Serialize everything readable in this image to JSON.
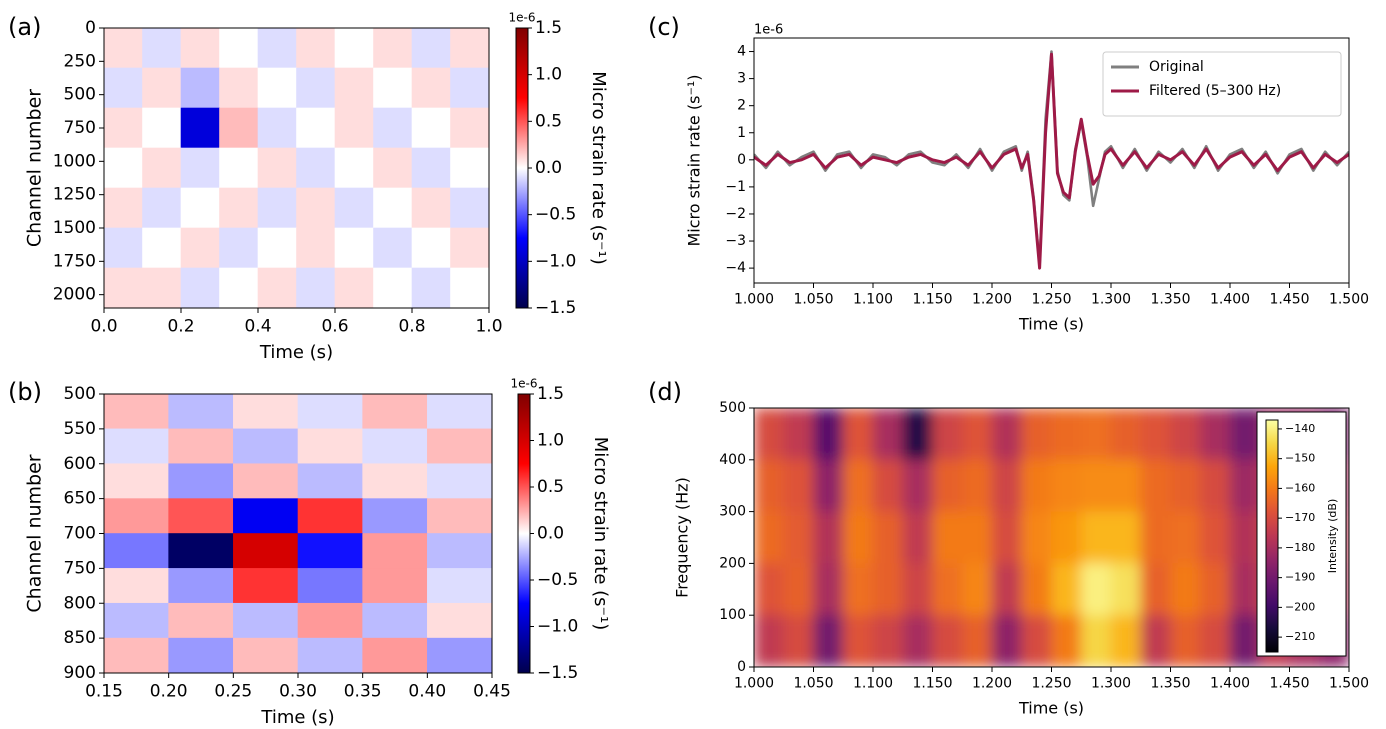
{
  "chart_data": [
    {
      "type": "heatmap",
      "panel_label": "(a)",
      "x_label": "Time (s)",
      "y_label": "Channel number",
      "xlim": [
        0,
        1
      ],
      "ylim": [
        2100,
        0
      ],
      "xticks": [
        {
          "value": 0,
          "label": "0.0"
        },
        0.2,
        0.4,
        0.6,
        0.8,
        {
          "value": 1,
          "label": "1.0"
        }
      ],
      "yticks": [
        0,
        250,
        500,
        750,
        1000,
        1250,
        1500,
        1750,
        2000
      ],
      "colormap": "seismic",
      "colorbar": {
        "placement": "right",
        "label": "Micro strain rate (s⁻¹)",
        "offset_label": "1e-6",
        "lim": [
          -1.5,
          1.5
        ],
        "ticks": [
          {
            "value": -1.5,
            "label": "−1.5"
          },
          {
            "value": -1,
            "label": "−1.0"
          },
          {
            "value": -0.5,
            "label": "−0.5"
          },
          {
            "value": 0,
            "label": "0.0"
          },
          0.5,
          {
            "value": 1,
            "label": "1.0"
          },
          1.5
        ]
      },
      "z": [
        [
          0.1,
          -0.1,
          0.1,
          0.0,
          -0.1,
          0.1,
          0.0,
          0.1,
          -0.1,
          0.1
        ],
        [
          -0.1,
          0.1,
          -0.2,
          0.1,
          0.0,
          -0.1,
          0.1,
          0.0,
          0.1,
          -0.1
        ],
        [
          0.1,
          0.0,
          -0.9,
          0.2,
          -0.1,
          0.0,
          0.1,
          -0.1,
          0.0,
          0.1
        ],
        [
          0.0,
          0.1,
          -0.1,
          0.0,
          0.1,
          -0.1,
          0.0,
          0.1,
          -0.1,
          0.0
        ],
        [
          0.1,
          -0.1,
          0.0,
          0.1,
          -0.1,
          0.1,
          -0.1,
          0.0,
          0.1,
          -0.1
        ],
        [
          -0.1,
          0.0,
          0.1,
          -0.1,
          0.0,
          0.1,
          0.0,
          -0.1,
          0.0,
          0.1
        ],
        [
          0.1,
          0.1,
          -0.1,
          0.0,
          0.1,
          -0.1,
          0.1,
          0.0,
          -0.1,
          0.0
        ]
      ]
    },
    {
      "type": "heatmap",
      "panel_label": "(b)",
      "x_label": "Time (s)",
      "y_label": "Channel number",
      "xlim": [
        0.15,
        0.45
      ],
      "ylim": [
        900,
        500
      ],
      "xticks": [
        0.15,
        {
          "value": 0.2,
          "label": "0.20"
        },
        0.25,
        {
          "value": 0.3,
          "label": "0.30"
        },
        0.35,
        {
          "value": 0.4,
          "label": "0.40"
        },
        0.45
      ],
      "yticks": [
        500,
        550,
        600,
        650,
        700,
        750,
        800,
        850,
        900
      ],
      "colormap": "seismic",
      "colorbar": {
        "placement": "right",
        "label": "Micro strain rate (s⁻¹)",
        "offset_label": "1e-6",
        "lim": [
          -1.5,
          1.5
        ],
        "ticks": [
          {
            "value": -1.5,
            "label": "−1.5"
          },
          {
            "value": -1,
            "label": "−1.0"
          },
          {
            "value": -0.5,
            "label": "−0.5"
          },
          {
            "value": 0,
            "label": "0.0"
          },
          0.5,
          {
            "value": 1,
            "label": "1.0"
          },
          1.5
        ]
      },
      "z": [
        [
          0.2,
          -0.2,
          0.1,
          -0.1,
          0.2,
          -0.1
        ],
        [
          -0.1,
          0.2,
          -0.2,
          0.1,
          -0.1,
          0.2
        ],
        [
          0.1,
          -0.3,
          0.2,
          -0.2,
          0.1,
          -0.1
        ],
        [
          0.3,
          0.5,
          -0.8,
          0.6,
          -0.3,
          0.2
        ],
        [
          -0.4,
          -1.4,
          1.0,
          -0.7,
          0.3,
          -0.2
        ],
        [
          0.1,
          -0.3,
          0.6,
          -0.4,
          0.3,
          -0.1
        ],
        [
          -0.2,
          0.2,
          -0.2,
          0.3,
          -0.2,
          0.1
        ],
        [
          0.2,
          -0.3,
          0.2,
          -0.2,
          0.3,
          -0.3
        ]
      ]
    },
    {
      "type": "line",
      "panel_label": "(c)",
      "x_label": "Time (s)",
      "y_label": "Micro strain rate (s⁻¹)",
      "offset_label": "1e-6",
      "xlim": [
        1.0,
        1.5
      ],
      "ylim": [
        -4.55,
        4.5
      ],
      "xticks": [
        {
          "value": 1.0,
          "label": "1.000"
        },
        {
          "value": 1.05,
          "label": "1.050"
        },
        {
          "value": 1.1,
          "label": "1.100"
        },
        {
          "value": 1.15,
          "label": "1.150"
        },
        {
          "value": 1.2,
          "label": "1.200"
        },
        {
          "value": 1.25,
          "label": "1.250"
        },
        {
          "value": 1.3,
          "label": "1.300"
        },
        {
          "value": 1.35,
          "label": "1.350"
        },
        {
          "value": 1.4,
          "label": "1.400"
        },
        {
          "value": 1.45,
          "label": "1.450"
        },
        {
          "value": 1.5,
          "label": "1.500"
        }
      ],
      "yticks": [
        {
          "value": -4,
          "label": "−4"
        },
        {
          "value": -3,
          "label": "−3"
        },
        {
          "value": -2,
          "label": "−2"
        },
        {
          "value": -1,
          "label": "−1"
        },
        0,
        1,
        2,
        3,
        4
      ],
      "legend": "upper right",
      "x": [
        1.0,
        1.01,
        1.02,
        1.03,
        1.04,
        1.05,
        1.06,
        1.07,
        1.08,
        1.09,
        1.1,
        1.11,
        1.12,
        1.13,
        1.14,
        1.15,
        1.16,
        1.17,
        1.18,
        1.19,
        1.2,
        1.21,
        1.22,
        1.225,
        1.23,
        1.235,
        1.24,
        1.245,
        1.25,
        1.255,
        1.26,
        1.265,
        1.27,
        1.275,
        1.28,
        1.285,
        1.29,
        1.295,
        1.3,
        1.31,
        1.32,
        1.33,
        1.34,
        1.35,
        1.36,
        1.37,
        1.38,
        1.39,
        1.4,
        1.41,
        1.42,
        1.43,
        1.44,
        1.45,
        1.46,
        1.47,
        1.48,
        1.49,
        1.5
      ],
      "series": [
        {
          "name": "Original",
          "color": "#7f7f7f",
          "values": [
            0.2,
            -0.3,
            0.3,
            -0.2,
            0.1,
            0.3,
            -0.4,
            0.2,
            0.3,
            -0.3,
            0.2,
            0.1,
            -0.2,
            0.2,
            0.3,
            -0.1,
            -0.2,
            0.2,
            -0.3,
            0.4,
            -0.4,
            0.3,
            0.5,
            -0.4,
            0.3,
            -1.4,
            -3.9,
            1.5,
            4.0,
            -0.4,
            -1.3,
            -1.5,
            0.4,
            1.4,
            0.1,
            -1.7,
            -0.7,
            0.3,
            0.5,
            -0.3,
            0.4,
            -0.4,
            0.3,
            -0.1,
            0.4,
            -0.3,
            0.5,
            -0.4,
            0.2,
            0.4,
            -0.3,
            0.3,
            -0.5,
            0.2,
            0.4,
            -0.4,
            0.3,
            -0.2,
            0.3
          ]
        },
        {
          "name": "Filtered (5–300 Hz)",
          "color": "#9e1a47",
          "values": [
            0.1,
            -0.2,
            0.2,
            -0.1,
            0.0,
            0.2,
            -0.3,
            0.1,
            0.2,
            -0.2,
            0.1,
            0.0,
            -0.1,
            0.1,
            0.2,
            0.0,
            -0.1,
            0.1,
            -0.2,
            0.3,
            -0.3,
            0.2,
            0.4,
            -0.3,
            0.2,
            -1.5,
            -4.0,
            1.0,
            3.9,
            -0.5,
            -1.2,
            -1.4,
            0.3,
            1.5,
            0.2,
            -0.9,
            -0.6,
            0.2,
            0.4,
            -0.2,
            0.3,
            -0.3,
            0.2,
            0.0,
            0.3,
            -0.2,
            0.4,
            -0.3,
            0.1,
            0.3,
            -0.2,
            0.2,
            -0.4,
            0.1,
            0.3,
            -0.3,
            0.2,
            -0.1,
            0.2
          ]
        }
      ]
    },
    {
      "type": "heatmap",
      "panel_label": "(d)",
      "x_label": "Time (s)",
      "y_label": "Frequency (Hz)",
      "xlim": [
        1.0,
        1.5
      ],
      "ylim": [
        0,
        500
      ],
      "xticks": [
        {
          "value": 1.0,
          "label": "1.000"
        },
        {
          "value": 1.05,
          "label": "1.050"
        },
        {
          "value": 1.1,
          "label": "1.100"
        },
        {
          "value": 1.15,
          "label": "1.150"
        },
        {
          "value": 1.2,
          "label": "1.200"
        },
        {
          "value": 1.25,
          "label": "1.250"
        },
        {
          "value": 1.3,
          "label": "1.300"
        },
        {
          "value": 1.35,
          "label": "1.350"
        },
        {
          "value": 1.4,
          "label": "1.400"
        },
        {
          "value": 1.45,
          "label": "1.450"
        },
        {
          "value": 1.5,
          "label": "1.500"
        }
      ],
      "yticks": [
        0,
        100,
        200,
        300,
        400,
        500
      ],
      "colormap": "inferno",
      "colorbar": {
        "placement": "inside upper right",
        "label": "Intensity (dB)",
        "lim": [
          -215,
          -137
        ],
        "ticks": [
          {
            "value": -210,
            "label": "−210"
          },
          {
            "value": -200,
            "label": "−200"
          },
          {
            "value": -190,
            "label": "−190"
          },
          {
            "value": -180,
            "label": "−180"
          },
          {
            "value": -170,
            "label": "−170"
          },
          {
            "value": -160,
            "label": "−160"
          },
          {
            "value": -150,
            "label": "−150"
          },
          {
            "value": -140,
            "label": "−140"
          }
        ]
      },
      "z": [
        [
          -170,
          -175,
          -195,
          -168,
          -180,
          -205,
          -172,
          -168,
          -178,
          -165,
          -163,
          -162,
          -165,
          -168,
          -172,
          -180,
          -190,
          -182,
          -183,
          -188
        ],
        [
          -165,
          -168,
          -185,
          -162,
          -170,
          -180,
          -165,
          -163,
          -172,
          -160,
          -158,
          -157,
          -157,
          -163,
          -165,
          -170,
          -182,
          -174,
          -178,
          -180
        ],
        [
          -163,
          -166,
          -178,
          -160,
          -165,
          -175,
          -160,
          -160,
          -170,
          -158,
          -155,
          -150,
          -150,
          -163,
          -162,
          -168,
          -178,
          -170,
          -175,
          -176
        ],
        [
          -168,
          -165,
          -180,
          -162,
          -165,
          -172,
          -162,
          -158,
          -175,
          -160,
          -150,
          -140,
          -143,
          -165,
          -160,
          -165,
          -180,
          -170,
          -172,
          -178
        ],
        [
          -175,
          -170,
          -190,
          -168,
          -172,
          -180,
          -170,
          -165,
          -185,
          -170,
          -160,
          -145,
          -150,
          -175,
          -165,
          -170,
          -190,
          -175,
          -180,
          -185
        ]
      ]
    }
  ]
}
